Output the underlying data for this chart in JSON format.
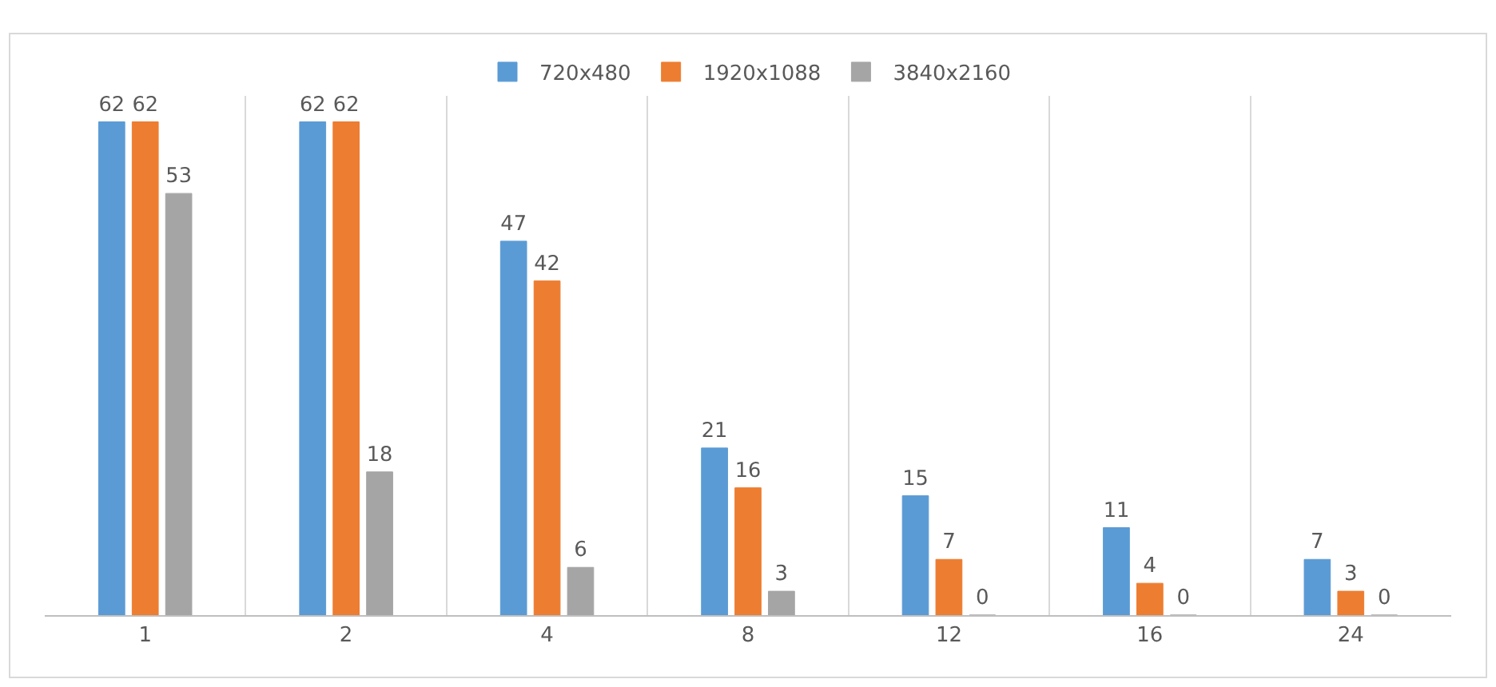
{
  "chart_data": {
    "type": "bar",
    "categories": [
      "1",
      "2",
      "4",
      "8",
      "12",
      "16",
      "24"
    ],
    "series": [
      {
        "name": "720x480",
        "color": "#5b9bd5",
        "values": [
          62,
          62,
          47,
          21,
          15,
          11,
          7
        ]
      },
      {
        "name": "1920x1088",
        "color": "#ed7d31",
        "values": [
          62,
          62,
          42,
          16,
          7,
          4,
          3
        ]
      },
      {
        "name": "3840x2160",
        "color": "#a5a5a5",
        "values": [
          53,
          18,
          6,
          3,
          0,
          0,
          0
        ]
      }
    ],
    "data_labels": true,
    "grid": "x",
    "legend": "top",
    "tick_labels": "x"
  }
}
